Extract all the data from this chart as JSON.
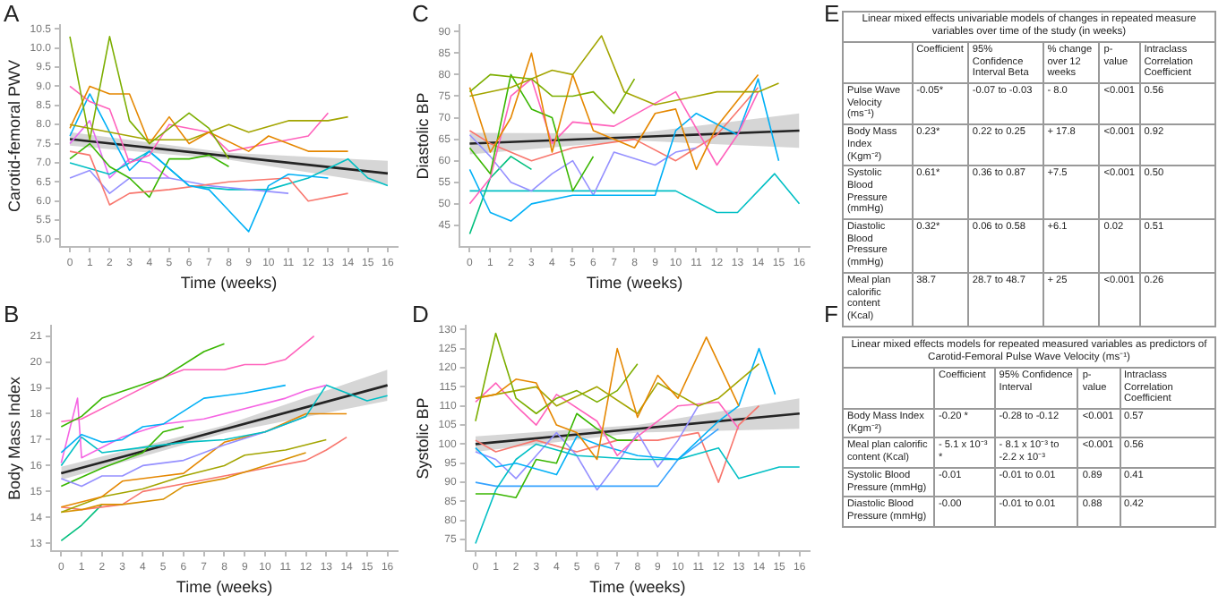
{
  "chart_data": [
    {
      "type": "line",
      "annotations": [
        "A"
      ],
      "xlabel": "Time (weeks)",
      "ylabel": "Carotid-femoral PWV",
      "grid": false,
      "marker": "none",
      "line_style": "solid",
      "xlim": [
        -0.5,
        16.5
      ],
      "xticks": [
        0,
        1,
        2,
        3,
        4,
        5,
        6,
        7,
        8,
        9,
        10,
        11,
        12,
        13,
        14,
        15,
        16
      ],
      "ylim": [
        4.8,
        10.6
      ],
      "yticks": [
        {
          "value": 5,
          "label": "5.0"
        },
        5.5,
        {
          "value": 6,
          "label": "6.0"
        },
        6.5,
        {
          "value": 7,
          "label": "7.0"
        },
        7.5,
        {
          "value": 8,
          "label": "8.0"
        },
        8.5,
        {
          "value": 9,
          "label": "9.0"
        },
        9.5,
        {
          "value": 10,
          "label": "10.0"
        },
        10.5
      ],
      "series": [
        {
          "color": "#7cae00",
          "x": [
            0,
            1,
            2,
            3,
            4,
            6,
            7,
            8
          ],
          "values": [
            10.3,
            7.6,
            10.3,
            8.1,
            7.5,
            8.3,
            7.9,
            7.1
          ]
        },
        {
          "color": "#e58700",
          "x": [
            0,
            1,
            2,
            3,
            4,
            5,
            6,
            7,
            9,
            10,
            12,
            14
          ],
          "values": [
            7.9,
            9.0,
            8.8,
            8.8,
            7.5,
            8.2,
            7.5,
            7.8,
            7.3,
            7.7,
            7.3,
            7.3
          ]
        },
        {
          "color": "#a3a500",
          "x": [
            0,
            2,
            4,
            6,
            8,
            9,
            11,
            13,
            14
          ],
          "values": [
            8.0,
            7.8,
            7.6,
            7.6,
            8.0,
            7.8,
            8.1,
            8.1,
            8.2
          ]
        },
        {
          "color": "#ff62bc",
          "x": [
            0,
            1,
            2,
            3,
            4,
            5,
            7,
            8,
            10,
            12,
            13
          ],
          "values": [
            9.0,
            8.6,
            8.4,
            7.0,
            7.2,
            8.0,
            7.8,
            7.3,
            7.5,
            7.7,
            8.3
          ]
        },
        {
          "color": "#00b0f6",
          "x": [
            0,
            1,
            2,
            3,
            4,
            6,
            7,
            9,
            10,
            11,
            13
          ],
          "values": [
            7.7,
            8.8,
            7.8,
            6.8,
            7.3,
            6.4,
            6.3,
            5.2,
            6.4,
            6.7,
            6.6
          ]
        },
        {
          "color": "#f8766d",
          "x": [
            0,
            1,
            2,
            3,
            5,
            8,
            11,
            12,
            14
          ],
          "values": [
            7.3,
            7.2,
            5.9,
            6.2,
            6.3,
            6.5,
            6.6,
            6.0,
            6.2
          ]
        },
        {
          "color": "#39b600",
          "x": [
            0,
            1,
            2,
            3,
            4,
            5,
            6,
            7,
            8
          ],
          "values": [
            7.1,
            7.5,
            6.9,
            6.6,
            6.1,
            7.1,
            7.1,
            7.2,
            6.9
          ]
        },
        {
          "color": "#9590ff",
          "x": [
            0,
            1,
            2,
            3,
            4,
            5,
            7,
            9,
            11
          ],
          "values": [
            6.6,
            6.8,
            6.2,
            6.6,
            6.6,
            6.6,
            6.4,
            6.3,
            6.2
          ]
        },
        {
          "color": "#00bfc4",
          "x": [
            0,
            2,
            4,
            6,
            8,
            10,
            12,
            14,
            15,
            16
          ],
          "values": [
            7.0,
            6.7,
            7.3,
            6.4,
            6.3,
            6.3,
            6.6,
            7.1,
            6.6,
            6.4
          ]
        },
        {
          "color": "#e76bf3",
          "x": [
            0,
            1,
            2,
            3,
            4,
            5
          ],
          "values": [
            7.5,
            8.1,
            6.6,
            7.1,
            7.0,
            6.6
          ]
        },
        {
          "color": "#000000",
          "x": [
            0,
            8,
            16
          ],
          "values": [
            7.62,
            7.17,
            6.72
          ],
          "lower": [
            7.45,
            7.08,
            6.42
          ],
          "upper": [
            7.8,
            7.26,
            7.05
          ]
        }
      ]
    },
    {
      "type": "line",
      "annotations": [
        "C"
      ],
      "xlabel": "Time (weeks)",
      "ylabel": "Diastolic BP",
      "grid": false,
      "marker": "none",
      "line_style": "solid",
      "xlim": [
        -0.5,
        16.5
      ],
      "xticks": [
        0,
        1,
        2,
        3,
        4,
        5,
        6,
        7,
        8,
        9,
        10,
        11,
        12,
        13,
        14,
        15,
        16
      ],
      "ylim": [
        40,
        91.5
      ],
      "yticks": [
        45,
        50,
        55,
        60,
        65,
        70,
        75,
        80,
        85,
        90
      ],
      "series": [
        {
          "color": "#7cae00",
          "x": [
            0,
            1,
            3,
            4,
            5,
            6,
            7,
            8
          ],
          "values": [
            76,
            80,
            79,
            75,
            75,
            76,
            71,
            79
          ]
        },
        {
          "color": "#a3a500",
          "x": [
            0,
            2,
            4,
            5,
            6.4,
            7.5,
            9,
            11,
            12,
            14,
            15
          ],
          "values": [
            75,
            77,
            81,
            80,
            89,
            76,
            73,
            75,
            76,
            76,
            78
          ]
        },
        {
          "color": "#e58700",
          "x": [
            0,
            1,
            2,
            3,
            4,
            5,
            6,
            8,
            9,
            10,
            11,
            12,
            14
          ],
          "values": [
            77,
            62,
            70,
            85,
            62,
            80,
            67,
            63,
            71,
            72,
            58,
            68,
            80
          ]
        },
        {
          "color": "#39b600",
          "x": [
            0,
            1,
            2,
            3,
            4,
            5,
            6
          ],
          "values": [
            63,
            57,
            80,
            72,
            70,
            53,
            61
          ]
        },
        {
          "color": "#ff62bc",
          "x": [
            0,
            1,
            2,
            3,
            4,
            5,
            7,
            10,
            12,
            13,
            14
          ],
          "values": [
            50,
            56,
            75,
            79,
            64,
            69,
            68,
            76,
            59,
            66,
            76
          ]
        },
        {
          "color": "#00b0f6",
          "x": [
            0,
            1,
            2,
            3,
            5,
            9,
            10,
            11,
            13,
            14,
            15
          ],
          "values": [
            58,
            48,
            46,
            50,
            52,
            52,
            67,
            71,
            66,
            79,
            60
          ]
        },
        {
          "color": "#9590ff",
          "x": [
            0,
            1,
            2,
            3,
            4,
            5,
            6,
            7,
            9,
            10,
            11
          ],
          "values": [
            66,
            61,
            55,
            53,
            57,
            60,
            52,
            62,
            59,
            62,
            63
          ]
        },
        {
          "color": "#00bfc4",
          "x": [
            0,
            5,
            10,
            12,
            13,
            14.8,
            16
          ],
          "values": [
            53,
            53,
            53,
            48,
            48,
            57,
            50
          ]
        },
        {
          "color": "#00bf7d",
          "x": [
            0,
            1,
            2,
            3
          ],
          "values": [
            43,
            56,
            61,
            58
          ]
        },
        {
          "color": "#f8766d",
          "x": [
            0,
            1,
            3,
            5,
            8,
            10,
            12,
            14
          ],
          "values": [
            67,
            64,
            60,
            63,
            65,
            60,
            66,
            77
          ]
        },
        {
          "color": "#000000",
          "x": [
            0,
            8,
            16
          ],
          "values": [
            64,
            65.5,
            67
          ],
          "lower": [
            61.5,
            64.7,
            63
          ],
          "upper": [
            66.5,
            66.3,
            71
          ]
        }
      ]
    },
    {
      "type": "other",
      "annotations": [
        "E"
      ],
      "title": "Linear mixed effects univariable models of changes in repeated measure variables over time of the study (in weeks)",
      "categories": [
        "Coefficient",
        "95% Confidence Interval Beta",
        "% change over 12 weeks",
        "p-value",
        "Intraclass Correlation Coefficient"
      ],
      "y_categories": [
        "Pulse Wave Velocity (ms⁻¹)",
        "Body Mass Index (Kgm⁻²)",
        "Systolic Blood Pressure (mmHg)",
        "Diastolic Blood Pressure (mmHg)",
        "Meal plan calorific content (Kcal)"
      ],
      "cell_labels": [
        [
          "-0.05*",
          "-0.07 to -0.03",
          "- 8.0",
          "<0.001",
          "0.56"
        ],
        [
          "0.23*",
          "0.22 to 0.25",
          "+ 17.8",
          "<0.001",
          "0.92"
        ],
        [
          "0.61*",
          "0.36 to 0.87",
          "+7.5",
          "<0.001",
          "0.50"
        ],
        [
          "0.32*",
          "0.06 to 0.58",
          "+6.1",
          "0.02",
          "0.51"
        ],
        [
          "38.7",
          "28.7 to 48.7",
          "+ 25",
          "<0.001",
          "0.26"
        ]
      ]
    },
    {
      "type": "line",
      "annotations": [
        "B"
      ],
      "xlabel": "Time (weeks)",
      "ylabel": "Body Mass Index",
      "grid": false,
      "marker": "none",
      "line_style": "solid",
      "xlim": [
        -0.5,
        16.5
      ],
      "xticks": [
        0,
        1,
        2,
        3,
        4,
        5,
        6,
        7,
        8,
        9,
        10,
        11,
        12,
        13,
        14,
        15,
        16
      ],
      "ylim": [
        12.7,
        21.4
      ],
      "yticks": [
        13,
        14,
        15,
        16,
        17,
        18,
        19,
        20,
        21
      ],
      "series": [
        {
          "color": "#39b600",
          "x": [
            0,
            1,
            2,
            5,
            7,
            8
          ],
          "values": [
            17.5,
            17.9,
            18.6,
            19.4,
            20.4,
            20.7
          ]
        },
        {
          "color": "#ff62bc",
          "x": [
            0,
            1,
            3,
            5,
            6,
            8,
            9,
            10,
            11,
            12.4
          ],
          "values": [
            17.7,
            17.8,
            18.6,
            19.4,
            19.7,
            19.7,
            19.9,
            19.9,
            20.1,
            21.0
          ]
        },
        {
          "color": "#00b0f6",
          "x": [
            0,
            1,
            2,
            3,
            4,
            5,
            7,
            9,
            11
          ],
          "values": [
            16.5,
            17.2,
            16.9,
            17.0,
            17.5,
            17.6,
            18.6,
            18.8,
            19.1
          ]
        },
        {
          "color": "#f564e3",
          "x": [
            0,
            0.8,
            1,
            3,
            5,
            7,
            9,
            11,
            12,
            13
          ],
          "values": [
            16.1,
            18.6,
            16.3,
            17.1,
            17.6,
            17.8,
            18.2,
            18.6,
            18.9,
            19.1
          ]
        },
        {
          "color": "#00bfc4",
          "x": [
            0,
            1,
            2,
            4,
            6,
            8,
            10,
            12,
            13,
            14,
            15,
            16
          ],
          "values": [
            16.0,
            17.1,
            16.5,
            16.7,
            16.9,
            17.0,
            17.3,
            17.9,
            19.1,
            18.8,
            18.5,
            18.7
          ]
        },
        {
          "color": "#9590ff",
          "x": [
            0,
            1,
            2,
            3,
            4,
            6,
            8,
            10,
            12
          ],
          "values": [
            15.5,
            15.2,
            15.6,
            15.6,
            16.0,
            16.2,
            16.8,
            17.3,
            17.9
          ]
        },
        {
          "color": "#e58700",
          "x": [
            0,
            2,
            3,
            5,
            6,
            8,
            10,
            12,
            14
          ],
          "values": [
            14.4,
            14.8,
            15.4,
            15.6,
            15.7,
            16.9,
            17.3,
            18.0,
            18.0
          ]
        },
        {
          "color": "#a3a500",
          "x": [
            0,
            2,
            4,
            6,
            8,
            9,
            11,
            13
          ],
          "values": [
            14.2,
            14.8,
            15.1,
            15.6,
            16.0,
            16.4,
            16.6,
            17.0
          ]
        },
        {
          "color": "#d89000",
          "x": [
            0,
            1,
            2,
            3,
            5,
            6,
            8,
            10,
            12
          ],
          "values": [
            14.2,
            14.3,
            14.5,
            14.5,
            14.7,
            15.2,
            15.5,
            16.0,
            16.5
          ]
        },
        {
          "color": "#f8766d",
          "x": [
            0,
            1,
            3,
            4,
            6,
            8,
            10,
            12,
            13,
            14
          ],
          "values": [
            14.4,
            14.3,
            14.5,
            15.0,
            15.3,
            15.6,
            15.9,
            16.2,
            16.6,
            17.1
          ]
        },
        {
          "color": "#00bf7d",
          "x": [
            0,
            1,
            2
          ],
          "values": [
            13.1,
            13.7,
            14.5
          ]
        },
        {
          "color": "#39b600",
          "x": [
            0,
            2,
            4,
            5,
            6
          ],
          "values": [
            15.2,
            15.9,
            16.5,
            17.3,
            17.5
          ]
        },
        {
          "color": "#000000",
          "x": [
            0,
            8,
            16
          ],
          "values": [
            15.7,
            17.4,
            19.1
          ],
          "lower": [
            15.45,
            17.25,
            18.5
          ],
          "upper": [
            15.95,
            17.55,
            19.7
          ]
        }
      ]
    },
    {
      "type": "line",
      "annotations": [
        "D"
      ],
      "xlabel": "Time (weeks)",
      "ylabel": "Systolic BP",
      "grid": false,
      "marker": "none",
      "line_style": "solid",
      "xlim": [
        -0.5,
        16.5
      ],
      "xticks": [
        0,
        1,
        2,
        3,
        4,
        5,
        6,
        7,
        8,
        9,
        10,
        11,
        12,
        13,
        14,
        15,
        16
      ],
      "ylim": [
        72,
        131
      ],
      "yticks": [
        75,
        80,
        85,
        90,
        95,
        100,
        105,
        110,
        115,
        120,
        125,
        130
      ],
      "series": [
        {
          "color": "#7cae00",
          "x": [
            0,
            1,
            2,
            3,
            4,
            5,
            6,
            7,
            8
          ],
          "values": [
            106,
            129,
            112,
            108,
            112,
            114,
            111,
            114,
            121
          ]
        },
        {
          "color": "#e58700",
          "x": [
            0,
            1,
            2,
            3,
            4,
            5,
            6,
            7,
            8,
            9,
            10,
            11.4,
            13
          ],
          "values": [
            112,
            113,
            117,
            116,
            105,
            103,
            96,
            125,
            107,
            118,
            112,
            128,
            110
          ]
        },
        {
          "color": "#a3a500",
          "x": [
            0,
            2,
            3,
            4,
            6,
            8,
            9,
            11,
            12,
            14
          ],
          "values": [
            112,
            114,
            115,
            110,
            115,
            108,
            116,
            110,
            112,
            121
          ]
        },
        {
          "color": "#ff62bc",
          "x": [
            0,
            1,
            2,
            3,
            4,
            6,
            7,
            8,
            10,
            12,
            13
          ],
          "values": [
            111,
            116,
            110,
            105,
            113,
            106,
            97,
            102,
            110,
            111,
            104
          ]
        },
        {
          "color": "#00b0f6",
          "x": [
            0,
            1,
            2,
            4,
            5,
            6,
            8,
            10,
            12,
            13,
            14,
            14.8
          ],
          "values": [
            99,
            94,
            95,
            92,
            102,
            100,
            97,
            96,
            106,
            110,
            125,
            113
          ]
        },
        {
          "color": "#39b600",
          "x": [
            0,
            1,
            2,
            3,
            4,
            5,
            6,
            7,
            8
          ],
          "values": [
            87,
            87,
            86,
            96,
            95,
            108,
            104,
            101,
            101
          ]
        },
        {
          "color": "#00bfc4",
          "x": [
            0,
            1,
            2,
            3,
            5,
            8,
            10,
            12,
            13,
            15,
            16
          ],
          "values": [
            74,
            88,
            96,
            100,
            97,
            96,
            96,
            99,
            91,
            94,
            94
          ]
        },
        {
          "color": "#35a2ff",
          "x": [
            0,
            1,
            5,
            9,
            10,
            12
          ],
          "values": [
            90,
            89,
            89,
            89,
            96,
            104
          ]
        },
        {
          "color": "#9590ff",
          "x": [
            0,
            1,
            2,
            3,
            4,
            5,
            6,
            7,
            8,
            9,
            10,
            11
          ],
          "values": [
            98,
            96,
            91,
            97,
            103,
            97,
            88,
            95,
            103,
            94,
            101,
            110
          ]
        },
        {
          "color": "#f8766d",
          "x": [
            0,
            1,
            3,
            5,
            7,
            9,
            11,
            12,
            13,
            14
          ],
          "values": [
            101,
            98,
            101,
            98,
            101,
            101,
            103,
            90,
            105,
            110
          ]
        },
        {
          "color": "#000000",
          "x": [
            0,
            8,
            16
          ],
          "values": [
            100,
            104,
            108
          ],
          "lower": [
            98,
            103,
            104
          ],
          "upper": [
            102,
            105,
            112
          ]
        }
      ]
    },
    {
      "type": "other",
      "annotations": [
        "F"
      ],
      "title": "Linear mixed effects models for repeated measured variables as predictors of Carotid-Femoral Pulse Wave Velocity (ms⁻¹)",
      "categories": [
        "Coefficient",
        "95% Confidence Interval",
        "p-value",
        "Intraclass Correlation Coefficient"
      ],
      "y_categories": [
        "Body Mass Index (Kgm⁻²)",
        "Meal plan calorific content  (Kcal)",
        "Systolic Blood Pressure (mmHg)",
        "Diastolic Blood Pressure (mmHg)"
      ],
      "cell_labels": [
        [
          "-0.20 *",
          "-0.28 to -0.12",
          "<0.001",
          "0.57"
        ],
        [
          "- 5.1 x 10⁻³ *",
          "- 8.1 x 10⁻³ to -2.2 x 10⁻³",
          "<0.001",
          "0.56"
        ],
        [
          "-0.01",
          "-0.01 to 0.01",
          "0.89",
          "0.41"
        ],
        [
          "-0.00",
          "-0.01 to 0.01",
          "0.88",
          "0.42"
        ]
      ]
    }
  ]
}
